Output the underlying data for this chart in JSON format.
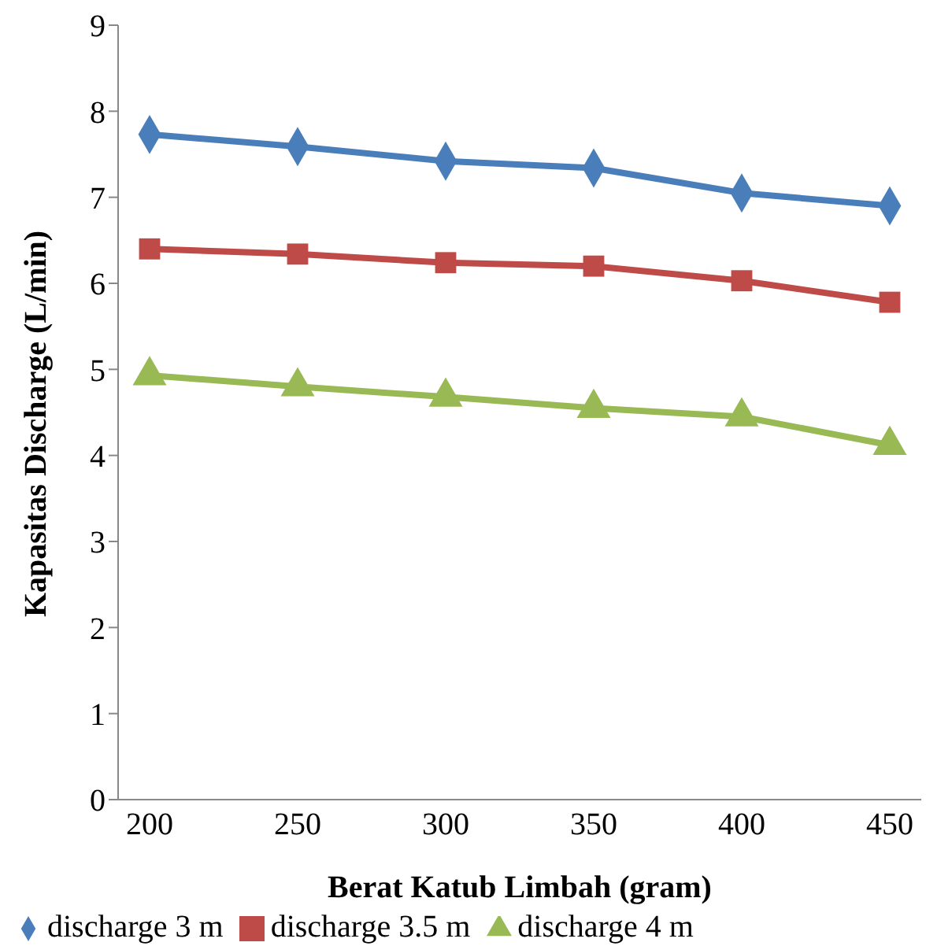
{
  "chart_data": {
    "type": "line",
    "xlabel": "Berat Katub Limbah (gram)",
    "ylabel": "Kapasitas Discharge (L/min)",
    "categories": [
      "200",
      "250",
      "300",
      "350",
      "400",
      "450"
    ],
    "series": [
      {
        "name": "discharge 3 m",
        "color": "#4a7ebb",
        "marker": "diamond",
        "values": [
          7.73,
          7.59,
          7.42,
          7.34,
          7.05,
          6.9
        ]
      },
      {
        "name": "discharge 3.5 m",
        "color": "#be4b48",
        "marker": "square",
        "values": [
          6.4,
          6.34,
          6.24,
          6.2,
          6.03,
          5.78
        ]
      },
      {
        "name": "discharge 4 m",
        "color": "#98b954",
        "marker": "triangle",
        "values": [
          4.93,
          4.8,
          4.68,
          4.55,
          4.45,
          4.12
        ]
      }
    ],
    "ylim": [
      0,
      9
    ],
    "yticks": [
      0,
      1,
      2,
      3,
      4,
      5,
      6,
      7,
      8,
      9
    ],
    "grid": false,
    "legend": "bottom"
  }
}
